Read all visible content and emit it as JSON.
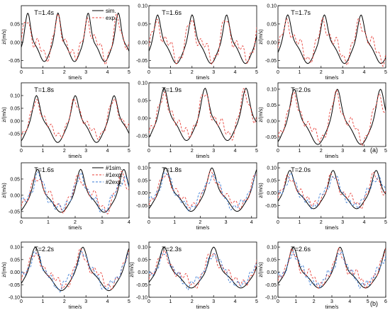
{
  "figure": {
    "label_a": "(a)",
    "label_b": "(b)"
  },
  "colors": {
    "sim": "#000000",
    "exp": "#e8413a",
    "exp2": "#3a7bd5"
  },
  "chart_data": [
    {
      "type": "line",
      "title": "T=1.4s",
      "xlabel": "time/s",
      "ylabel": "ż/(m/s)",
      "xlim": [
        0,
        5
      ],
      "ylim": [
        -0.07,
        0.1
      ],
      "xticks": [
        0,
        1,
        2,
        3,
        4,
        5
      ],
      "yticks": [
        -0.05,
        0,
        0.05
      ],
      "period": 1.4,
      "amp_pos": 0.08,
      "amp_neg": -0.05,
      "phase": 0.3,
      "legend": [
        "sim.",
        "exp."
      ],
      "series": [
        {
          "name": "sim.",
          "style": "sim"
        },
        {
          "name": "exp.",
          "style": "exp"
        }
      ]
    },
    {
      "type": "line",
      "title": "T=1.6s",
      "xlabel": "time/s",
      "ylabel": "",
      "xlim": [
        0,
        5
      ],
      "ylim": [
        -0.07,
        0.1
      ],
      "xticks": [
        0,
        1,
        2,
        3,
        4,
        5
      ],
      "yticks": [
        -0.05,
        0,
        0.05,
        0.1
      ],
      "period": 1.6,
      "amp_pos": 0.075,
      "amp_neg": -0.055,
      "phase": 0.4,
      "series": [
        {
          "style": "sim"
        },
        {
          "style": "exp"
        }
      ]
    },
    {
      "type": "line",
      "title": "T=1.7s",
      "xlabel": "time/s",
      "ylabel": "ż/(m/s)",
      "xlim": [
        0,
        5
      ],
      "ylim": [
        -0.07,
        0.1
      ],
      "xticks": [
        0,
        1,
        2,
        3,
        4,
        5
      ],
      "yticks": [
        -0.05,
        0,
        0.05,
        0.1
      ],
      "period": 1.7,
      "amp_pos": 0.075,
      "amp_neg": -0.055,
      "phase": 0.45,
      "series": [
        {
          "style": "sim"
        },
        {
          "style": "exp"
        }
      ]
    },
    {
      "type": "line",
      "title": "T=1.8s",
      "xlabel": "time/s",
      "ylabel": "ż/(m/s)",
      "xlim": [
        0,
        5
      ],
      "ylim": [
        -0.1,
        0.15
      ],
      "xticks": [
        0,
        1,
        2,
        3,
        4,
        5
      ],
      "yticks": [
        -0.05,
        0,
        0.05,
        0.1
      ],
      "period": 1.8,
      "amp_pos": 0.1,
      "amp_neg": -0.08,
      "phase": 0.7,
      "series": [
        {
          "style": "sim"
        },
        {
          "style": "exp"
        }
      ]
    },
    {
      "type": "line",
      "title": "T=1.9s",
      "xlabel": "time/s",
      "ylabel": "",
      "xlim": [
        0,
        5
      ],
      "ylim": [
        -0.08,
        0.1
      ],
      "xticks": [
        0,
        1,
        2,
        3,
        4,
        5
      ],
      "yticks": [
        -0.05,
        0,
        0.05,
        0.1
      ],
      "period": 1.9,
      "amp_pos": 0.085,
      "amp_neg": -0.06,
      "phase": 0.7,
      "series": [
        {
          "style": "sim"
        },
        {
          "style": "exp"
        }
      ]
    },
    {
      "type": "line",
      "title": "T=2.0s",
      "xlabel": "time/s",
      "ylabel": "ż/(m/s)",
      "xlim": [
        0,
        5
      ],
      "ylim": [
        -0.08,
        0.12
      ],
      "xticks": [
        0,
        1,
        2,
        3,
        4,
        5
      ],
      "yticks": [
        -0.05,
        0,
        0.05,
        0.1
      ],
      "period": 2.0,
      "amp_pos": 0.1,
      "amp_neg": -0.07,
      "phase": 0.75,
      "series": [
        {
          "style": "sim"
        },
        {
          "style": "exp"
        }
      ]
    },
    {
      "type": "line",
      "title": "T=1.6s",
      "xlabel": "time/s",
      "ylabel": "ż/(m/s)",
      "xlim": [
        0,
        4
      ],
      "ylim": [
        -0.07,
        0.1
      ],
      "xticks": [
        0,
        1,
        2,
        3,
        4
      ],
      "yticks": [
        -0.05,
        0,
        0.05
      ],
      "period": 1.6,
      "amp_pos": 0.08,
      "amp_neg": -0.05,
      "phase": 0.6,
      "legend": [
        "#1sim.",
        "#1exp.",
        "#2exp."
      ],
      "series": [
        {
          "name": "#1sim.",
          "style": "sim"
        },
        {
          "name": "#1exp.",
          "style": "exp"
        },
        {
          "name": "#2exp.",
          "style": "exp2"
        }
      ]
    },
    {
      "type": "line",
      "title": "T=1.8s",
      "xlabel": "time/s",
      "ylabel": "",
      "xlim": [
        0,
        4.2
      ],
      "ylim": [
        -0.1,
        0.12
      ],
      "xticks": [
        0,
        1,
        2,
        3,
        4
      ],
      "yticks": [
        -0.05,
        0,
        0.05,
        0.1
      ],
      "period": 1.8,
      "amp_pos": 0.1,
      "amp_neg": -0.07,
      "phase": 0.65,
      "series": [
        {
          "style": "sim"
        },
        {
          "style": "exp"
        },
        {
          "style": "exp2"
        }
      ]
    },
    {
      "type": "line",
      "title": "T=2.0s",
      "xlabel": "time/s",
      "ylabel": "ż/(m/s)",
      "xlim": [
        0,
        5
      ],
      "ylim": [
        -0.1,
        0.12
      ],
      "xticks": [
        0,
        1,
        2,
        3,
        4,
        5
      ],
      "yticks": [
        -0.05,
        0,
        0.05,
        0.1
      ],
      "period": 2.0,
      "amp_pos": 0.09,
      "amp_neg": -0.06,
      "phase": 0.55,
      "series": [
        {
          "style": "sim"
        },
        {
          "style": "exp"
        },
        {
          "style": "exp2"
        }
      ]
    },
    {
      "type": "line",
      "title": "T=2.2s",
      "xlabel": "time/s",
      "ylabel": "ż/(m/s)",
      "xlim": [
        0,
        5
      ],
      "ylim": [
        -0.1,
        0.12
      ],
      "xticks": [
        0,
        1,
        2,
        3,
        4,
        5
      ],
      "yticks": [
        -0.1,
        -0.05,
        0,
        0.05,
        0.1
      ],
      "period": 2.2,
      "amp_pos": 0.1,
      "amp_neg": -0.07,
      "phase": 0.65,
      "series": [
        {
          "style": "sim"
        },
        {
          "style": "exp"
        },
        {
          "style": "exp2"
        }
      ]
    },
    {
      "type": "line",
      "title": "T=2.3s",
      "xlabel": "time/s",
      "ylabel": "ż/(m/s)",
      "xlim": [
        0,
        5
      ],
      "ylim": [
        -0.1,
        0.12
      ],
      "xticks": [
        0,
        1,
        2,
        3,
        4,
        5
      ],
      "yticks": [
        -0.1,
        -0.05,
        0,
        0.05,
        0.1
      ],
      "period": 2.3,
      "amp_pos": 0.1,
      "amp_neg": -0.06,
      "phase": 0.7,
      "series": [
        {
          "style": "sim"
        },
        {
          "style": "exp"
        },
        {
          "style": "exp2"
        }
      ]
    },
    {
      "type": "line",
      "title": "T=2.6s",
      "xlabel": "time/s",
      "ylabel": "ż/(m/s)",
      "xlim": [
        0,
        6
      ],
      "ylim": [
        -0.1,
        0.12
      ],
      "xticks": [
        0,
        1,
        2,
        3,
        4,
        5,
        6
      ],
      "yticks": [
        -0.1,
        -0.05,
        0,
        0.05,
        0.1
      ],
      "period": 2.6,
      "amp_pos": 0.1,
      "amp_neg": -0.06,
      "phase": 0.85,
      "series": [
        {
          "style": "sim"
        },
        {
          "style": "exp"
        },
        {
          "style": "exp2"
        }
      ]
    }
  ]
}
